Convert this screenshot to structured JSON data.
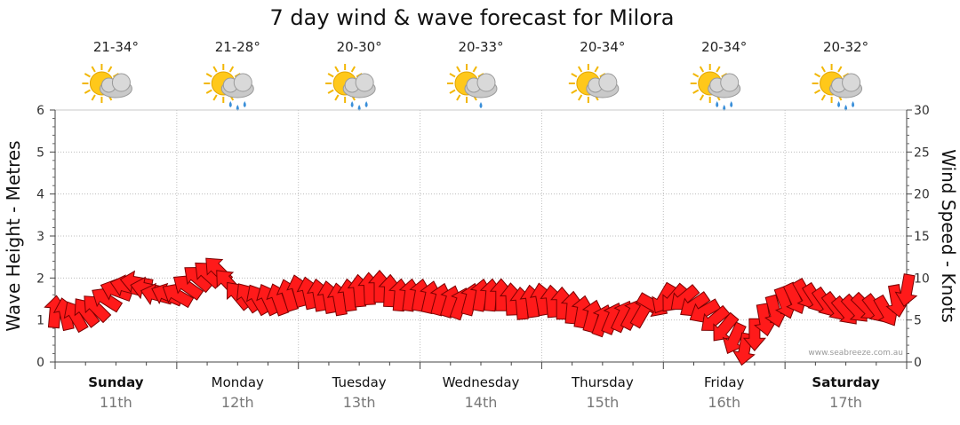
{
  "chart_data": {
    "type": "line",
    "title": "7 day wind & wave forecast for Milora",
    "ylabel_left": "Wave Height - Metres",
    "ylabel_right": "Wind Speed - Knots",
    "ylim_left": [
      0,
      6
    ],
    "ylim_right": [
      0,
      30
    ],
    "yticks_left": [
      "0",
      "1",
      "2",
      "3",
      "4",
      "5",
      "6"
    ],
    "yticks_right": [
      "0",
      "5",
      "10",
      "15",
      "20",
      "25",
      "30"
    ],
    "credit": "www.seabreeze.com.au",
    "grid": true,
    "days": [
      {
        "name": "Sunday",
        "date": "11th",
        "temp": "21-34°",
        "icon": "partly-cloudy-icon",
        "bold": true
      },
      {
        "name": "Monday",
        "date": "12th",
        "temp": "21-28°",
        "icon": "showers-icon",
        "bold": false
      },
      {
        "name": "Tuesday",
        "date": "13th",
        "temp": "20-30°",
        "icon": "showers-icon",
        "bold": false
      },
      {
        "name": "Wednesday",
        "date": "14th",
        "temp": "20-33°",
        "icon": "light-shower-icon",
        "bold": false
      },
      {
        "name": "Thursday",
        "date": "15th",
        "temp": "20-34°",
        "icon": "partly-cloudy-icon",
        "bold": false
      },
      {
        "name": "Friday",
        "date": "16th",
        "temp": "20-34°",
        "icon": "showers-icon",
        "bold": false
      },
      {
        "name": "Saturday",
        "date": "17th",
        "temp": "20-32°",
        "icon": "showers-icon",
        "bold": true
      }
    ],
    "wind_series": {
      "name": "Wind Speed - Knots",
      "unit": "knots",
      "x_hours": [
        0,
        4,
        8,
        12,
        16,
        20,
        24,
        28,
        32,
        36,
        40,
        44,
        48,
        52,
        56,
        60,
        64,
        68,
        72,
        76,
        80,
        84,
        88,
        92,
        96,
        100,
        104,
        108,
        112,
        116,
        120,
        124,
        128,
        132,
        136,
        140,
        144,
        148,
        152,
        156,
        160,
        164,
        168
      ],
      "speed": [
        6,
        5.5,
        6.5,
        8.5,
        9.5,
        8,
        8,
        10,
        11,
        8,
        7.5,
        7.5,
        8.5,
        8,
        7.5,
        8.5,
        9,
        8,
        8,
        7.5,
        7,
        8,
        8,
        7,
        7.5,
        7,
        6,
        5,
        5.5,
        6,
        7.5,
        7.5,
        6,
        4,
        1.5,
        5,
        7,
        8,
        7,
        6,
        6.5,
        6,
        8.5
      ],
      "direction_deg": [
        95,
        60,
        45,
        20,
        10,
        15,
        30,
        40,
        45,
        50,
        60,
        70,
        75,
        80,
        80,
        85,
        90,
        95,
        100,
        105,
        110,
        100,
        90,
        85,
        80,
        90,
        100,
        110,
        115,
        120,
        300,
        320,
        330,
        310,
        280,
        260,
        250,
        240,
        235,
        230,
        225,
        240,
        280
      ]
    }
  }
}
